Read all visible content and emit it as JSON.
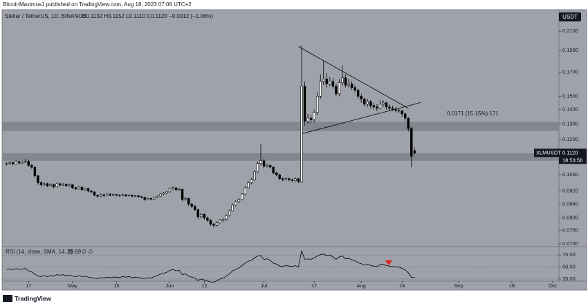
{
  "publisher": "BitcoinMaximus1 published on TradingView.com, Aug 18, 2023 07:06 UTC+2",
  "footer": "TradingView",
  "chart_data": [
    {
      "type": "candlestick",
      "title": "Stellar / TetherUS, 1D, BINANCE",
      "ohlc_summary": "O0.1132 H0.1152 L0.1110 C0.1120 −0.0012 (−1.06%)",
      "currency": "USDT",
      "symbol": "XLMUSDT",
      "last_price": {
        "value": 0.112,
        "label": "0.1120"
      },
      "countdown": "18:53:56",
      "annotation": "0.0171 (15.15%) 171",
      "log_scale": true,
      "grid": false,
      "up_color": "#ffffff",
      "down_color": "#000000",
      "zone_color": "#83868e",
      "line_color": "#000000",
      "xlim": [
        99,
        276
      ],
      "xticks": [
        {
          "value": 107,
          "label": "17"
        },
        {
          "value": 121,
          "label": "May"
        },
        {
          "value": 135,
          "label": "15"
        },
        {
          "value": 152,
          "label": "Jun"
        },
        {
          "value": 163,
          "label": "12"
        },
        {
          "value": 182,
          "label": "Jul"
        },
        {
          "value": 198,
          "label": "17"
        },
        {
          "value": 213,
          "label": "Aug"
        },
        {
          "value": 226,
          "label": "14"
        },
        {
          "value": 244,
          "label": "Sep"
        },
        {
          "value": 261,
          "label": "18"
        },
        {
          "value": 274,
          "label": "Oct"
        }
      ],
      "ylim": [
        0.069,
        0.2347
      ],
      "yticks": [
        {
          "value": 0.21,
          "label": "0.2100"
        },
        {
          "value": 0.19,
          "label": "0.1900"
        },
        {
          "value": 0.17,
          "label": "0.1700"
        },
        {
          "value": 0.15,
          "label": "0.1500"
        },
        {
          "value": 0.14,
          "label": "0.1400"
        },
        {
          "value": 0.13,
          "label": "0.1300"
        },
        {
          "value": 0.12,
          "label": "0.1200"
        },
        {
          "value": 0.11,
          "label": "0.1100"
        },
        {
          "value": 0.1,
          "label": "0.1000"
        },
        {
          "value": 0.092,
          "label": "0.0920"
        },
        {
          "value": 0.086,
          "label": "0.0860"
        },
        {
          "value": 0.08,
          "label": "0.0800"
        },
        {
          "value": 0.075,
          "label": "0.0750"
        },
        {
          "value": 0.07,
          "label": "0.0700"
        }
      ],
      "zones": [
        [
          0.1254,
          0.1314
        ],
        [
          0.1075,
          0.1118
        ]
      ],
      "trendlines": [
        {
          "x": [
            193,
            228
          ],
          "y": [
            0.194,
            0.141
          ]
        },
        {
          "x": [
            194.2,
            232
          ],
          "y": [
            0.1237,
            0.1453
          ]
        }
      ],
      "x": [
        100,
        101,
        102,
        103,
        104,
        105,
        106,
        107,
        108,
        109,
        110,
        111,
        112,
        113,
        114,
        115,
        116,
        117,
        118,
        119,
        120,
        121,
        122,
        123,
        124,
        125,
        126,
        127,
        128,
        129,
        130,
        131,
        132,
        133,
        134,
        135,
        136,
        137,
        138,
        139,
        140,
        141,
        142,
        143,
        144,
        145,
        146,
        147,
        148,
        149,
        150,
        151,
        152,
        153,
        154,
        155,
        156,
        157,
        158,
        159,
        160,
        161,
        162,
        163,
        164,
        165,
        166,
        167,
        168,
        169,
        170,
        171,
        172,
        173,
        174,
        175,
        176,
        177,
        178,
        179,
        180,
        181,
        182,
        183,
        184,
        185,
        186,
        187,
        188,
        189,
        190,
        191,
        192,
        193,
        194,
        195,
        196,
        197,
        198,
        199,
        200,
        201,
        202,
        203,
        204,
        205,
        206,
        207,
        208,
        209,
        210,
        211,
        212,
        213,
        214,
        215,
        216,
        217,
        218,
        219,
        220,
        221,
        222,
        223,
        224,
        225,
        226,
        227,
        228,
        229,
        230
      ],
      "ohlc": [
        [
          0.1055,
          0.1068,
          0.1048,
          0.106
        ],
        [
          0.106,
          0.1072,
          0.1052,
          0.1065
        ],
        [
          0.1065,
          0.107,
          0.105,
          0.1058
        ],
        [
          0.1058,
          0.1078,
          0.1054,
          0.107
        ],
        [
          0.107,
          0.1075,
          0.1056,
          0.1062
        ],
        [
          0.1062,
          0.1074,
          0.1058,
          0.1068
        ],
        [
          0.1068,
          0.1085,
          0.1062,
          0.1072
        ],
        [
          0.1072,
          0.108,
          0.1042,
          0.105
        ],
        [
          0.105,
          0.1058,
          0.1032,
          0.104
        ],
        [
          0.104,
          0.1045,
          0.0985,
          0.0995
        ],
        [
          0.0995,
          0.1,
          0.095,
          0.096
        ],
        [
          0.096,
          0.0968,
          0.094,
          0.095
        ],
        [
          0.095,
          0.0962,
          0.0944,
          0.0955
        ],
        [
          0.0955,
          0.096,
          0.0938,
          0.0945
        ],
        [
          0.0945,
          0.0958,
          0.094,
          0.095
        ],
        [
          0.095,
          0.0955,
          0.0932,
          0.094
        ],
        [
          0.094,
          0.0962,
          0.0936,
          0.0955
        ],
        [
          0.0955,
          0.096,
          0.0942,
          0.0948
        ],
        [
          0.0948,
          0.0958,
          0.0944,
          0.0952
        ],
        [
          0.0952,
          0.0956,
          0.094,
          0.0945
        ],
        [
          0.0945,
          0.0956,
          0.094,
          0.095
        ],
        [
          0.095,
          0.0954,
          0.0928,
          0.0935
        ],
        [
          0.0935,
          0.094,
          0.0924,
          0.093
        ],
        [
          0.093,
          0.0944,
          0.0926,
          0.0938
        ],
        [
          0.0938,
          0.0942,
          0.092,
          0.0925
        ],
        [
          0.0925,
          0.0936,
          0.092,
          0.0932
        ],
        [
          0.0932,
          0.0935,
          0.0914,
          0.092
        ],
        [
          0.092,
          0.0924,
          0.091,
          0.0915
        ],
        [
          0.0915,
          0.0918,
          0.0894,
          0.09
        ],
        [
          0.09,
          0.0904,
          0.0888,
          0.0895
        ],
        [
          0.0895,
          0.0908,
          0.0892,
          0.0902
        ],
        [
          0.0902,
          0.0906,
          0.0892,
          0.0898
        ],
        [
          0.0898,
          0.091,
          0.0895,
          0.0905
        ],
        [
          0.0905,
          0.0908,
          0.0895,
          0.09
        ],
        [
          0.09,
          0.0908,
          0.0896,
          0.0903
        ],
        [
          0.0903,
          0.0906,
          0.0895,
          0.09
        ],
        [
          0.09,
          0.0904,
          0.0893,
          0.0898
        ],
        [
          0.0898,
          0.0907,
          0.0895,
          0.0902
        ],
        [
          0.0902,
          0.0905,
          0.0892,
          0.0897
        ],
        [
          0.0897,
          0.0904,
          0.0894,
          0.09
        ],
        [
          0.09,
          0.0903,
          0.089,
          0.0895
        ],
        [
          0.0895,
          0.0902,
          0.0892,
          0.0898
        ],
        [
          0.0898,
          0.09,
          0.0888,
          0.0893
        ],
        [
          0.0893,
          0.0897,
          0.0885,
          0.089
        ],
        [
          0.089,
          0.0893,
          0.0874,
          0.088
        ],
        [
          0.088,
          0.089,
          0.0876,
          0.0885
        ],
        [
          0.0885,
          0.0888,
          0.0876,
          0.0882
        ],
        [
          0.0882,
          0.0894,
          0.0879,
          0.089
        ],
        [
          0.089,
          0.0899,
          0.0886,
          0.0895
        ],
        [
          0.0895,
          0.091,
          0.0892,
          0.0905
        ],
        [
          0.0905,
          0.0915,
          0.09,
          0.091
        ],
        [
          0.091,
          0.092,
          0.0905,
          0.0915
        ],
        [
          0.0915,
          0.0936,
          0.0912,
          0.093
        ],
        [
          0.093,
          0.0942,
          0.0925,
          0.0935
        ],
        [
          0.0935,
          0.0938,
          0.092,
          0.0925
        ],
        [
          0.0925,
          0.0934,
          0.092,
          0.0928
        ],
        [
          0.0928,
          0.093,
          0.0872,
          0.088
        ],
        [
          0.088,
          0.0892,
          0.0875,
          0.0885
        ],
        [
          0.0885,
          0.0888,
          0.0852,
          0.086
        ],
        [
          0.086,
          0.0866,
          0.0842,
          0.085
        ],
        [
          0.085,
          0.0856,
          0.0828,
          0.0835
        ],
        [
          0.0835,
          0.084,
          0.0795,
          0.0805
        ],
        [
          0.0805,
          0.0822,
          0.08,
          0.0815
        ],
        [
          0.0815,
          0.082,
          0.0794,
          0.08
        ],
        [
          0.08,
          0.0806,
          0.0784,
          0.079
        ],
        [
          0.079,
          0.0795,
          0.0768,
          0.0775
        ],
        [
          0.0775,
          0.078,
          0.0762,
          0.077
        ],
        [
          0.077,
          0.0786,
          0.0766,
          0.078
        ],
        [
          0.078,
          0.0796,
          0.0776,
          0.079
        ],
        [
          0.079,
          0.08,
          0.0784,
          0.0795
        ],
        [
          0.0795,
          0.0815,
          0.079,
          0.081
        ],
        [
          0.081,
          0.0836,
          0.0806,
          0.083
        ],
        [
          0.083,
          0.0862,
          0.0826,
          0.0855
        ],
        [
          0.0855,
          0.0876,
          0.085,
          0.087
        ],
        [
          0.087,
          0.0886,
          0.0864,
          0.088
        ],
        [
          0.088,
          0.0912,
          0.0875,
          0.0905
        ],
        [
          0.0905,
          0.0942,
          0.09,
          0.0935
        ],
        [
          0.0935,
          0.0968,
          0.093,
          0.096
        ],
        [
          0.096,
          0.0984,
          0.0952,
          0.0975
        ],
        [
          0.0975,
          0.1025,
          0.097,
          0.1015
        ],
        [
          0.1015,
          0.107,
          0.1008,
          0.106
        ],
        [
          0.106,
          0.1173,
          0.105,
          0.1075
        ],
        [
          0.1075,
          0.1085,
          0.1035,
          0.1045
        ],
        [
          0.1045,
          0.106,
          0.1038,
          0.105
        ],
        [
          0.105,
          0.1055,
          0.1032,
          0.104
        ],
        [
          0.104,
          0.1045,
          0.1002,
          0.101
        ],
        [
          0.101,
          0.1016,
          0.0992,
          0.1
        ],
        [
          0.1,
          0.1005,
          0.0972,
          0.098
        ],
        [
          0.098,
          0.0988,
          0.0968,
          0.0975
        ],
        [
          0.0975,
          0.0988,
          0.097,
          0.098
        ],
        [
          0.098,
          0.0985,
          0.0968,
          0.0975
        ],
        [
          0.0975,
          0.098,
          0.0962,
          0.097
        ],
        [
          0.097,
          0.0986,
          0.0965,
          0.098
        ],
        [
          0.098,
          0.0984,
          0.0958,
          0.0965
        ],
        [
          0.0965,
          0.195,
          0.096,
          0.158
        ],
        [
          0.158,
          0.162,
          0.129,
          0.132
        ],
        [
          0.132,
          0.137,
          0.13,
          0.134
        ],
        [
          0.134,
          0.136,
          0.1305,
          0.133
        ],
        [
          0.133,
          0.14,
          0.131,
          0.138
        ],
        [
          0.138,
          0.153,
          0.136,
          0.15
        ],
        [
          0.15,
          0.168,
          0.148,
          0.162
        ],
        [
          0.162,
          0.18,
          0.159,
          0.164
        ],
        [
          0.164,
          0.169,
          0.157,
          0.16
        ],
        [
          0.16,
          0.166,
          0.158,
          0.162
        ],
        [
          0.162,
          0.165,
          0.156,
          0.158
        ],
        [
          0.158,
          0.16,
          0.15,
          0.152
        ],
        [
          0.152,
          0.164,
          0.15,
          0.161
        ],
        [
          0.161,
          0.176,
          0.159,
          0.165
        ],
        [
          0.165,
          0.168,
          0.157,
          0.159
        ],
        [
          0.159,
          0.164,
          0.157,
          0.16
        ],
        [
          0.16,
          0.162,
          0.155,
          0.157
        ],
        [
          0.157,
          0.159,
          0.153,
          0.155
        ],
        [
          0.155,
          0.156,
          0.148,
          0.15
        ],
        [
          0.15,
          0.152,
          0.145,
          0.148
        ],
        [
          0.148,
          0.149,
          0.142,
          0.144
        ],
        [
          0.144,
          0.148,
          0.142,
          0.146
        ],
        [
          0.146,
          0.147,
          0.141,
          0.143
        ],
        [
          0.143,
          0.145,
          0.14,
          0.142
        ],
        [
          0.142,
          0.144,
          0.139,
          0.141
        ],
        [
          0.141,
          0.147,
          0.14,
          0.144
        ],
        [
          0.144,
          0.147,
          0.142,
          0.145
        ],
        [
          0.145,
          0.146,
          0.14,
          0.142
        ],
        [
          0.142,
          0.144,
          0.1395,
          0.141
        ],
        [
          0.141,
          0.143,
          0.139,
          0.14
        ],
        [
          0.14,
          0.142,
          0.138,
          0.1395
        ],
        [
          0.1395,
          0.141,
          0.1375,
          0.139
        ],
        [
          0.139,
          0.14,
          0.135,
          0.137
        ],
        [
          0.137,
          0.138,
          0.132,
          0.134
        ],
        [
          0.134,
          0.1345,
          0.125,
          0.127
        ],
        [
          0.127,
          0.128,
          0.104,
          0.11
        ],
        [
          0.1132,
          0.1152,
          0.111,
          0.112
        ]
      ]
    },
    {
      "type": "line",
      "title": "RSI (14, close, SMA, 14, 2)",
      "status": "∅ ∅",
      "color": "#000000",
      "grid": true,
      "ylim": [
        20.6,
        92.6
      ],
      "yticks": [
        {
          "value": 75,
          "label": "75.00"
        },
        {
          "value": 50,
          "label": "50.00"
        },
        {
          "value": 25,
          "label": "25.00"
        }
      ],
      "values": [
        45,
        46,
        44,
        47,
        45,
        46,
        47,
        42,
        40,
        35,
        31,
        30,
        32,
        30,
        32,
        31,
        34,
        33,
        34,
        32,
        33,
        31,
        30,
        32,
        30,
        31,
        29,
        28,
        27,
        26,
        28,
        27,
        29,
        28,
        29,
        29,
        28,
        30,
        29,
        30,
        28,
        29,
        28,
        27,
        26,
        28,
        27,
        30,
        32,
        35,
        37,
        39,
        43,
        45,
        42,
        43,
        34,
        36,
        31,
        29,
        27,
        22,
        25,
        23,
        21,
        19,
        18,
        22,
        25,
        27,
        31,
        36,
        42,
        45,
        48,
        53,
        58,
        62,
        64,
        69,
        73,
        74,
        66,
        67,
        64,
        58,
        56,
        52,
        51,
        53,
        52,
        51,
        53,
        50,
        84,
        66,
        67,
        66,
        69,
        73,
        76,
        77,
        74,
        75,
        71,
        66,
        71,
        73,
        67,
        68,
        65,
        63,
        59,
        57,
        54,
        56,
        53,
        52,
        51,
        55,
        56,
        53,
        52,
        51,
        50,
        50,
        47,
        44,
        38,
        28,
        28.69
      ]
    }
  ]
}
